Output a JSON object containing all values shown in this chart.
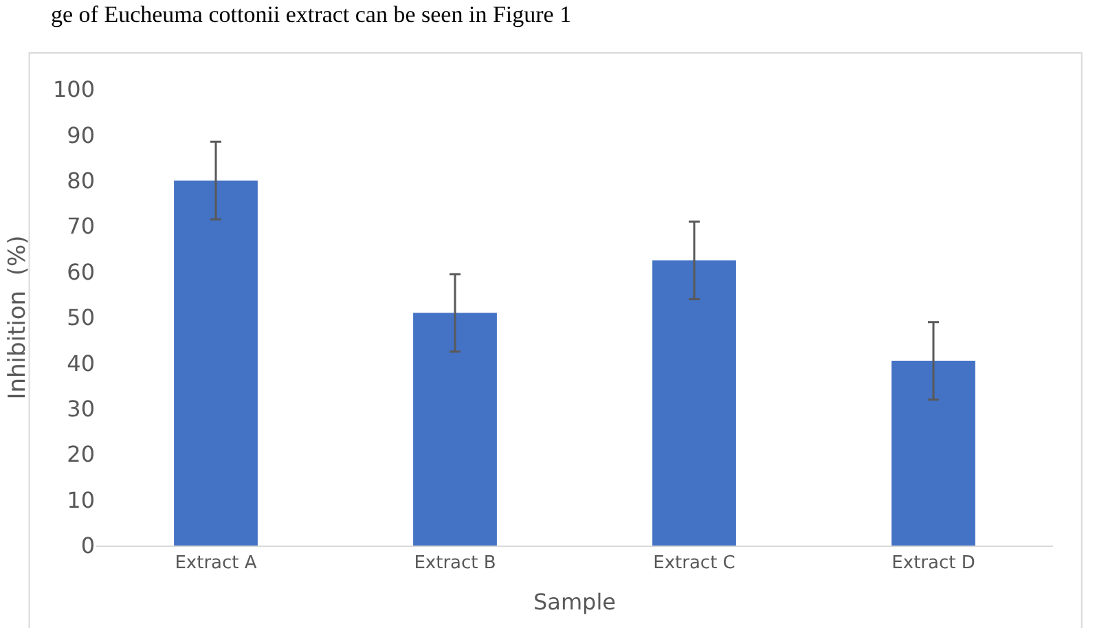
{
  "chart_data": {
    "type": "bar",
    "xlabel": "Sample",
    "ylabel": "Inhibition  (%)",
    "categories": [
      "Extract A",
      "Extract B",
      "Extract C",
      "Extract D"
    ],
    "values": [
      80,
      51,
      62.5,
      40.5
    ],
    "errors": [
      8.5,
      8.5,
      8.5,
      8.5
    ],
    "color": "#4472c4",
    "ylim": [
      0,
      100
    ],
    "yticks": [
      0,
      10,
      20,
      30,
      40,
      50,
      60,
      70,
      80,
      90,
      100
    ],
    "annotations": [
      "ge of Eucheuma cottonii extract can be seen in Figure 1"
    ]
  }
}
